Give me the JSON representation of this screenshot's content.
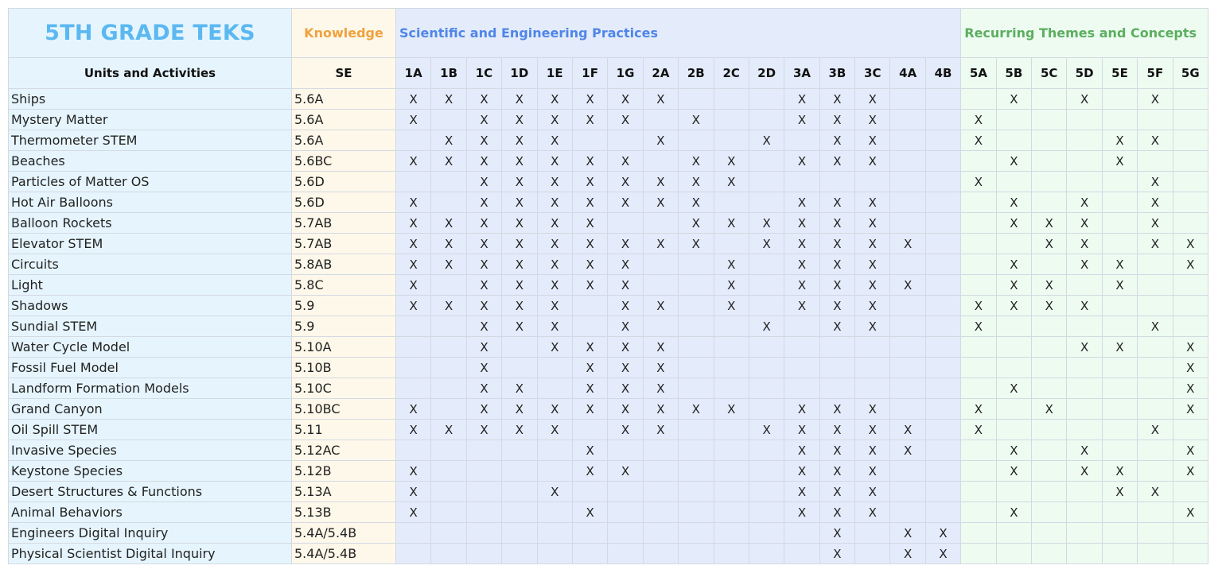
{
  "header": {
    "title": "5TH GRADE TEKS",
    "knowledge_label": "Knowledge",
    "practices_label": "Scientific and Engineering Practices",
    "themes_label": "Recurring Themes and Concepts",
    "units_col_label": "Units and Activities",
    "se_col_label": "SE"
  },
  "colors": {
    "title": "#5bb8f0",
    "knowledge": "#f0a23e",
    "practices": "#4f86e8",
    "themes": "#5cae5f",
    "units_bg": "#e6f5fd",
    "se_bg": "#fdf8ea",
    "practices_bg": "#e4ebfa",
    "themes_bg": "#edfbf1"
  },
  "practice_columns": [
    "1A",
    "1B",
    "1C",
    "1D",
    "1E",
    "1F",
    "1G",
    "2A",
    "2B",
    "2C",
    "2D",
    "3A",
    "3B",
    "3C",
    "4A",
    "4B"
  ],
  "theme_columns": [
    "5A",
    "5B",
    "5C",
    "5D",
    "5E",
    "5F",
    "5G"
  ],
  "mark_symbol": "X",
  "rows": [
    {
      "unit": "Ships",
      "se": "5.6A",
      "practices": [
        "1A",
        "1B",
        "1C",
        "1D",
        "1E",
        "1F",
        "1G",
        "2A",
        "3A",
        "3B",
        "3C"
      ],
      "themes": [
        "5B",
        "5D",
        "5F"
      ]
    },
    {
      "unit": "Mystery Matter",
      "se": "5.6A",
      "practices": [
        "1A",
        "1C",
        "1D",
        "1E",
        "1F",
        "1G",
        "2B",
        "3A",
        "3B",
        "3C"
      ],
      "themes": [
        "5A"
      ]
    },
    {
      "unit": "Thermometer STEM",
      "se": "5.6A",
      "practices": [
        "1B",
        "1C",
        "1D",
        "1E",
        "2A",
        "2D",
        "3B",
        "3C"
      ],
      "themes": [
        "5A",
        "5E",
        "5F"
      ]
    },
    {
      "unit": "Beaches",
      "se": "5.6BC",
      "practices": [
        "1A",
        "1B",
        "1C",
        "1D",
        "1E",
        "1F",
        "1G",
        "2B",
        "2C",
        "3A",
        "3B",
        "3C"
      ],
      "themes": [
        "5B",
        "5E"
      ]
    },
    {
      "unit": "Particles of Matter OS",
      "se": "5.6D",
      "practices": [
        "1C",
        "1D",
        "1E",
        "1F",
        "1G",
        "2A",
        "2B",
        "2C"
      ],
      "themes": [
        "5A",
        "5F"
      ]
    },
    {
      "unit": "Hot Air Balloons",
      "se": "5.6D",
      "practices": [
        "1A",
        "1C",
        "1D",
        "1E",
        "1F",
        "1G",
        "2A",
        "2B",
        "3A",
        "3B",
        "3C"
      ],
      "themes": [
        "5B",
        "5D",
        "5F"
      ]
    },
    {
      "unit": "Balloon Rockets",
      "se": "5.7AB",
      "practices": [
        "1A",
        "1B",
        "1C",
        "1D",
        "1E",
        "1F",
        "2B",
        "2C",
        "2D",
        "3A",
        "3B",
        "3C"
      ],
      "themes": [
        "5B",
        "5C",
        "5D",
        "5F"
      ]
    },
    {
      "unit": "Elevator STEM",
      "se": "5.7AB",
      "practices": [
        "1A",
        "1B",
        "1C",
        "1D",
        "1E",
        "1F",
        "1G",
        "2A",
        "2B",
        "2D",
        "3A",
        "3B",
        "3C",
        "4A"
      ],
      "themes": [
        "5C",
        "5D",
        "5F",
        "5G"
      ]
    },
    {
      "unit": "Circuits",
      "se": "5.8AB",
      "practices": [
        "1A",
        "1B",
        "1C",
        "1D",
        "1E",
        "1F",
        "1G",
        "2C",
        "3A",
        "3B",
        "3C"
      ],
      "themes": [
        "5B",
        "5D",
        "5E",
        "5G"
      ]
    },
    {
      "unit": "Light",
      "se": "5.8C",
      "practices": [
        "1A",
        "1C",
        "1D",
        "1E",
        "1F",
        "1G",
        "2C",
        "3A",
        "3B",
        "3C",
        "4A"
      ],
      "themes": [
        "5B",
        "5C",
        "5E"
      ]
    },
    {
      "unit": "Shadows",
      "se": "5.9",
      "practices": [
        "1A",
        "1B",
        "1C",
        "1D",
        "1E",
        "1G",
        "2A",
        "2C",
        "3A",
        "3B",
        "3C"
      ],
      "themes": [
        "5A",
        "5B",
        "5C",
        "5D"
      ]
    },
    {
      "unit": "Sundial STEM",
      "se": "5.9",
      "practices": [
        "1C",
        "1D",
        "1E",
        "1G",
        "2D",
        "3B",
        "3C"
      ],
      "themes": [
        "5A",
        "5F"
      ]
    },
    {
      "unit": "Water Cycle Model",
      "se": "5.10A",
      "practices": [
        "1C",
        "1E",
        "1F",
        "1G",
        "2A"
      ],
      "themes": [
        "5D",
        "5E",
        "5G"
      ]
    },
    {
      "unit": "Fossil Fuel Model",
      "se": "5.10B",
      "practices": [
        "1C",
        "1F",
        "1G",
        "2A"
      ],
      "themes": [
        "5G"
      ]
    },
    {
      "unit": "Landform Formation Models",
      "se": "5.10C",
      "practices": [
        "1C",
        "1D",
        "1F",
        "1G",
        "2A"
      ],
      "themes": [
        "5B",
        "5G"
      ]
    },
    {
      "unit": "Grand Canyon",
      "se": "5.10BC",
      "practices": [
        "1A",
        "1C",
        "1D",
        "1E",
        "1F",
        "1G",
        "2A",
        "2B",
        "2C",
        "3A",
        "3B",
        "3C"
      ],
      "themes": [
        "5A",
        "5C",
        "5G"
      ]
    },
    {
      "unit": "Oil Spill STEM",
      "se": "5.11",
      "practices": [
        "1A",
        "1B",
        "1C",
        "1D",
        "1E",
        "1G",
        "2A",
        "2D",
        "3A",
        "3B",
        "3C",
        "4A"
      ],
      "themes": [
        "5A",
        "5F"
      ]
    },
    {
      "unit": "Invasive Species",
      "se": "5.12AC",
      "practices": [
        "1F",
        "3A",
        "3B",
        "3C",
        "4A"
      ],
      "themes": [
        "5B",
        "5D",
        "5G"
      ]
    },
    {
      "unit": "Keystone Species",
      "se": "5.12B",
      "practices": [
        "1A",
        "1F",
        "1G",
        "3A",
        "3B",
        "3C"
      ],
      "themes": [
        "5B",
        "5D",
        "5E",
        "5G"
      ]
    },
    {
      "unit": "Desert Structures & Functions",
      "se": "5.13A",
      "practices": [
        "1A",
        "1E",
        "3A",
        "3B",
        "3C"
      ],
      "themes": [
        "5E",
        "5F"
      ]
    },
    {
      "unit": "Animal Behaviors",
      "se": "5.13B",
      "practices": [
        "1A",
        "1F",
        "3A",
        "3B",
        "3C"
      ],
      "themes": [
        "5B",
        "5G"
      ]
    },
    {
      "unit": "Engineers Digital Inquiry",
      "se": "5.4A/5.4B",
      "practices": [
        "3B",
        "4A",
        "4B"
      ],
      "themes": []
    },
    {
      "unit": "Physical Scientist Digital Inquiry",
      "se": "5.4A/5.4B",
      "practices": [
        "3B",
        "4A",
        "4B"
      ],
      "themes": []
    }
  ]
}
